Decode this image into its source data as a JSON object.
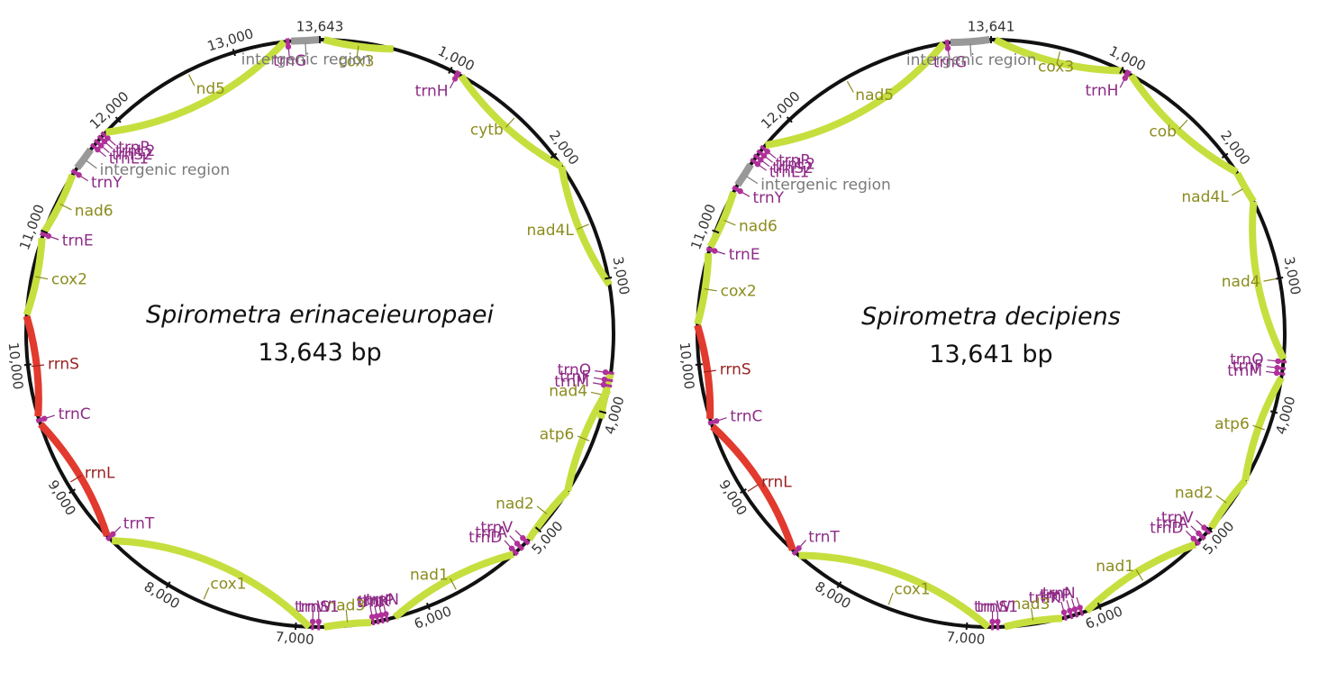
{
  "colors": {
    "protein": "#c6df3f",
    "rrna": "#e23a2e",
    "trna": "#b0309a",
    "intergenic": "#999999",
    "gap": "#111111",
    "protein_label": "#8c8c1e",
    "rrna_label": "#9a2222",
    "trna_label": "#8e2b86",
    "intergenic_label": "#7a7a7a"
  },
  "maps": [
    {
      "title": "Spirometra erinaceieuropaei",
      "length": "13,643 bp",
      "total": 13643,
      "tick_labels": [
        "1,000",
        "2,000",
        "3,000",
        "4,000",
        "5,000",
        "6,000",
        "7,000",
        "8,000",
        "9,000",
        "10,000",
        "11,000",
        "12,000",
        "13,000",
        "13,643"
      ],
      "features": [
        {
          "type": "protein",
          "start": 30,
          "end": 550,
          "label": "cox3"
        },
        {
          "type": "trna",
          "start": 1040,
          "end": 1080,
          "label": "trnH"
        },
        {
          "type": "protein",
          "start": 1090,
          "end": 2100,
          "label": "cytb"
        },
        {
          "type": "protein",
          "start": 2100,
          "end": 3050,
          "label": "nad4L"
        },
        {
          "type": "protein",
          "start": 3700,
          "end": 4050,
          "label": "nad4"
        },
        {
          "type": "trna",
          "start": 3695,
          "end": 3715,
          "label": "trnQ"
        },
        {
          "type": "trna",
          "start": 3750,
          "end": 3770,
          "label": "trnF"
        },
        {
          "type": "trna",
          "start": 3790,
          "end": 3810,
          "label": "trnM"
        },
        {
          "type": "protein",
          "start": 3830,
          "end": 4640,
          "label": "atp6"
        },
        {
          "type": "protein",
          "start": 4640,
          "end": 5100,
          "label": "nad2"
        },
        {
          "type": "trna",
          "start": 5110,
          "end": 5140,
          "label": "trnV"
        },
        {
          "type": "trna",
          "start": 5170,
          "end": 5200,
          "label": "trnA"
        },
        {
          "type": "trna",
          "start": 5225,
          "end": 5255,
          "label": "trnD"
        },
        {
          "type": "protein",
          "start": 5260,
          "end": 6260,
          "label": "nad1"
        },
        {
          "type": "trna",
          "start": 6310,
          "end": 6330,
          "label": "trnN"
        },
        {
          "type": "trna",
          "start": 6345,
          "end": 6365,
          "label": "trnP"
        },
        {
          "type": "trna",
          "start": 6380,
          "end": 6400,
          "label": "trnK"
        },
        {
          "type": "trna",
          "start": 6415,
          "end": 6435,
          "label": "trnI"
        },
        {
          "type": "protein",
          "start": 6440,
          "end": 6790,
          "label": "nad3"
        },
        {
          "type": "trna",
          "start": 6820,
          "end": 6840,
          "label": "trnS1"
        },
        {
          "type": "trna",
          "start": 6865,
          "end": 6885,
          "label": "trnW"
        },
        {
          "type": "protein",
          "start": 6900,
          "end": 8530,
          "label": "cox1"
        },
        {
          "type": "trna",
          "start": 8545,
          "end": 8575,
          "label": "trnT"
        },
        {
          "type": "rrna",
          "start": 8580,
          "end": 9550,
          "label": "rrnL"
        },
        {
          "type": "trna",
          "start": 9565,
          "end": 9595,
          "label": "trnC"
        },
        {
          "type": "rrna",
          "start": 9610,
          "end": 10360,
          "label": "rrnS"
        },
        {
          "type": "protein",
          "start": 10370,
          "end": 10950,
          "label": "cox2"
        },
        {
          "type": "trna",
          "start": 10965,
          "end": 10995,
          "label": "trnE"
        },
        {
          "type": "protein",
          "start": 11000,
          "end": 11470,
          "label": "nad6"
        },
        {
          "type": "trna",
          "start": 11480,
          "end": 11510,
          "label": "trnY"
        },
        {
          "type": "intergenic",
          "start": 11530,
          "end": 11700,
          "label": "intergenic region"
        },
        {
          "type": "trna",
          "start": 11720,
          "end": 11745,
          "label": "trnL1"
        },
        {
          "type": "trna",
          "start": 11760,
          "end": 11785,
          "label": "trnS2"
        },
        {
          "type": "trna",
          "start": 11800,
          "end": 11825,
          "label": "trnL2"
        },
        {
          "type": "trna",
          "start": 11835,
          "end": 11860,
          "label": "trnR"
        },
        {
          "type": "protein",
          "start": 11870,
          "end": 13380,
          "label": "nd5"
        },
        {
          "type": "trna",
          "start": 13390,
          "end": 13420,
          "label": "trnG"
        },
        {
          "type": "intergenic",
          "start": 13430,
          "end": 13640,
          "label": "intergenic region"
        }
      ]
    },
    {
      "title": "Spirometra decipiens",
      "length": "13,641 bp",
      "total": 13641,
      "tick_labels": [
        "1,000",
        "2,000",
        "3,000",
        "4,000",
        "5,000",
        "6,000",
        "7,000",
        "8,000",
        "9,000",
        "10,000",
        "11,000",
        "12,000",
        "13,641"
      ],
      "features": [
        {
          "type": "protein",
          "start": 30,
          "end": 1010,
          "label": "cox3"
        },
        {
          "type": "trna",
          "start": 1030,
          "end": 1070,
          "label": "trnH"
        },
        {
          "type": "protein",
          "start": 1080,
          "end": 2150,
          "label": "cob"
        },
        {
          "type": "protein",
          "start": 2160,
          "end": 2400,
          "label": "nad4L"
        },
        {
          "type": "protein",
          "start": 2400,
          "end": 3600,
          "label": "nad4"
        },
        {
          "type": "trna",
          "start": 3610,
          "end": 3630,
          "label": "trnQ"
        },
        {
          "type": "trna",
          "start": 3660,
          "end": 3680,
          "label": "trnF"
        },
        {
          "type": "trna",
          "start": 3700,
          "end": 3720,
          "label": "trnM"
        },
        {
          "type": "protein",
          "start": 3740,
          "end": 4550,
          "label": "atp6"
        },
        {
          "type": "protein",
          "start": 4550,
          "end": 4980,
          "label": "nad2"
        },
        {
          "type": "trna",
          "start": 5000,
          "end": 5030,
          "label": "trnV"
        },
        {
          "type": "trna",
          "start": 5060,
          "end": 5090,
          "label": "trnA"
        },
        {
          "type": "trna",
          "start": 5115,
          "end": 5145,
          "label": "trnD"
        },
        {
          "type": "protein",
          "start": 5150,
          "end": 6100,
          "label": "nad1"
        },
        {
          "type": "trna",
          "start": 6130,
          "end": 6150,
          "label": "trnN"
        },
        {
          "type": "trna",
          "start": 6170,
          "end": 6190,
          "label": "trnP"
        },
        {
          "type": "trna",
          "start": 6210,
          "end": 6230,
          "label": "trnI"
        },
        {
          "type": "trna",
          "start": 6255,
          "end": 6275,
          "label": "trnK"
        },
        {
          "type": "protein",
          "start": 6290,
          "end": 6720,
          "label": "nad3"
        },
        {
          "type": "trna",
          "start": 6760,
          "end": 6780,
          "label": "trnS1"
        },
        {
          "type": "trna",
          "start": 6800,
          "end": 6820,
          "label": "trnW"
        },
        {
          "type": "protein",
          "start": 6840,
          "end": 8370,
          "label": "cox1"
        },
        {
          "type": "trna",
          "start": 8390,
          "end": 8420,
          "label": "trnT"
        },
        {
          "type": "rrna",
          "start": 8430,
          "end": 9530,
          "label": "rrnL"
        },
        {
          "type": "trna",
          "start": 9545,
          "end": 9575,
          "label": "trnC"
        },
        {
          "type": "rrna",
          "start": 9590,
          "end": 10290,
          "label": "rrnS"
        },
        {
          "type": "protein",
          "start": 10300,
          "end": 10830,
          "label": "cox2"
        },
        {
          "type": "trna",
          "start": 10845,
          "end": 10875,
          "label": "trnE"
        },
        {
          "type": "protein",
          "start": 10880,
          "end": 11320,
          "label": "nad6"
        },
        {
          "type": "trna",
          "start": 11335,
          "end": 11365,
          "label": "trnY"
        },
        {
          "type": "intergenic",
          "start": 11380,
          "end": 11560,
          "label": "intergenic region"
        },
        {
          "type": "trna",
          "start": 11580,
          "end": 11605,
          "label": "trnL1"
        },
        {
          "type": "trna",
          "start": 11620,
          "end": 11645,
          "label": "trnS2"
        },
        {
          "type": "trna",
          "start": 11660,
          "end": 11685,
          "label": "trnL2"
        },
        {
          "type": "trna",
          "start": 11700,
          "end": 11725,
          "label": "trnR"
        },
        {
          "type": "protein",
          "start": 11740,
          "end": 13290,
          "label": "nad5"
        },
        {
          "type": "trna",
          "start": 13300,
          "end": 13330,
          "label": "trnG"
        },
        {
          "type": "intergenic",
          "start": 13340,
          "end": 13630,
          "label": "intergenic region"
        }
      ]
    }
  ]
}
